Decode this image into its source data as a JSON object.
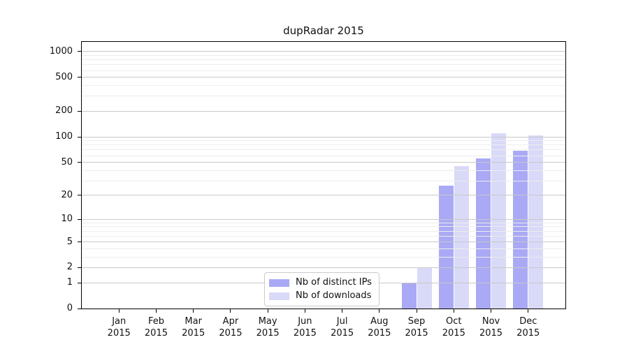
{
  "chart_data": {
    "type": "bar",
    "title": "dupRadar 2015",
    "categories": [
      "Jan",
      "Feb",
      "Mar",
      "Apr",
      "May",
      "Jun",
      "Jul",
      "Aug",
      "Sep",
      "Oct",
      "Nov",
      "Dec"
    ],
    "year_label": "2015",
    "series": [
      {
        "name": "Nb of distinct IPs",
        "color": "#a9a9f5",
        "values": [
          0,
          0,
          0,
          0,
          0,
          0,
          0,
          0,
          1,
          26,
          56,
          68
        ]
      },
      {
        "name": "Nb of downloads",
        "color": "#d9d9f8",
        "values": [
          0,
          0,
          0,
          0,
          0,
          0,
          0,
          0,
          2,
          45,
          110,
          105
        ]
      }
    ],
    "scale": "log1p",
    "yticks": [
      0,
      1,
      2,
      5,
      10,
      20,
      50,
      100,
      200,
      500,
      1000
    ],
    "ylim": [
      0,
      1300
    ],
    "xlabel": "",
    "ylabel": "",
    "grid": true,
    "legend_position": "inside lower-center-left"
  },
  "colors": {
    "grid_major": "#c9c9c9",
    "grid_minor": "#ededed",
    "axis": "#000000",
    "background": "#ffffff",
    "legend_border": "#cbcbcb"
  }
}
